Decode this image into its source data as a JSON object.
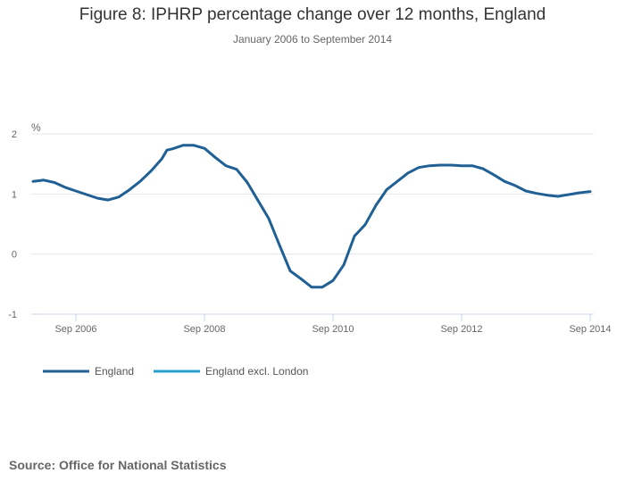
{
  "chart_data": {
    "type": "line",
    "title": "Figure 8: IPHRP percentage change over 12 months, England",
    "subtitle": "January 2006 to September 2014",
    "ylabel": "%",
    "xlabel": "",
    "ylim": [
      -1,
      2
    ],
    "yticks": [
      "2",
      "1",
      "0",
      "-1"
    ],
    "ytick_values": [
      2,
      1,
      0,
      -1
    ],
    "xticks": [
      "Sep 2006",
      "Sep 2008",
      "Sep 2010",
      "Sep 2012",
      "Sep 2014"
    ],
    "xtick_months": [
      8,
      32,
      56,
      80,
      104
    ],
    "x_months_range": [
      0,
      104
    ],
    "grid": true,
    "legend_position": "bottom-left",
    "series": [
      {
        "name": "England",
        "color": "#206095",
        "months": [
          0,
          2,
          4,
          6,
          8,
          10,
          12,
          14,
          16,
          18,
          20,
          22,
          24,
          25,
          26,
          28,
          30,
          32,
          34,
          36,
          38,
          40,
          42,
          44,
          46,
          48,
          50,
          52,
          54,
          56,
          58,
          60,
          62,
          64,
          66,
          68,
          70,
          72,
          74,
          76,
          78,
          80,
          82,
          84,
          86,
          88,
          90,
          92,
          94,
          96,
          98,
          100,
          102,
          104
        ],
        "values": [
          1.21,
          1.23,
          1.19,
          1.11,
          1.05,
          0.99,
          0.93,
          0.9,
          0.95,
          1.07,
          1.21,
          1.38,
          1.58,
          1.73,
          1.75,
          1.81,
          1.81,
          1.76,
          1.61,
          1.47,
          1.41,
          1.19,
          0.89,
          0.59,
          0.15,
          -0.28,
          -0.41,
          -0.55,
          -0.55,
          -0.44,
          -0.18,
          0.3,
          0.49,
          0.81,
          1.07,
          1.21,
          1.35,
          1.44,
          1.47,
          1.48,
          1.48,
          1.47,
          1.47,
          1.42,
          1.32,
          1.21,
          1.14,
          1.05,
          1.01,
          0.98,
          0.96,
          0.99,
          1.02,
          1.04
        ]
      },
      {
        "name": "England excl. London",
        "color": "#27a0cc",
        "months": [],
        "values": []
      }
    ]
  },
  "source": "Source: Office for National Statistics"
}
